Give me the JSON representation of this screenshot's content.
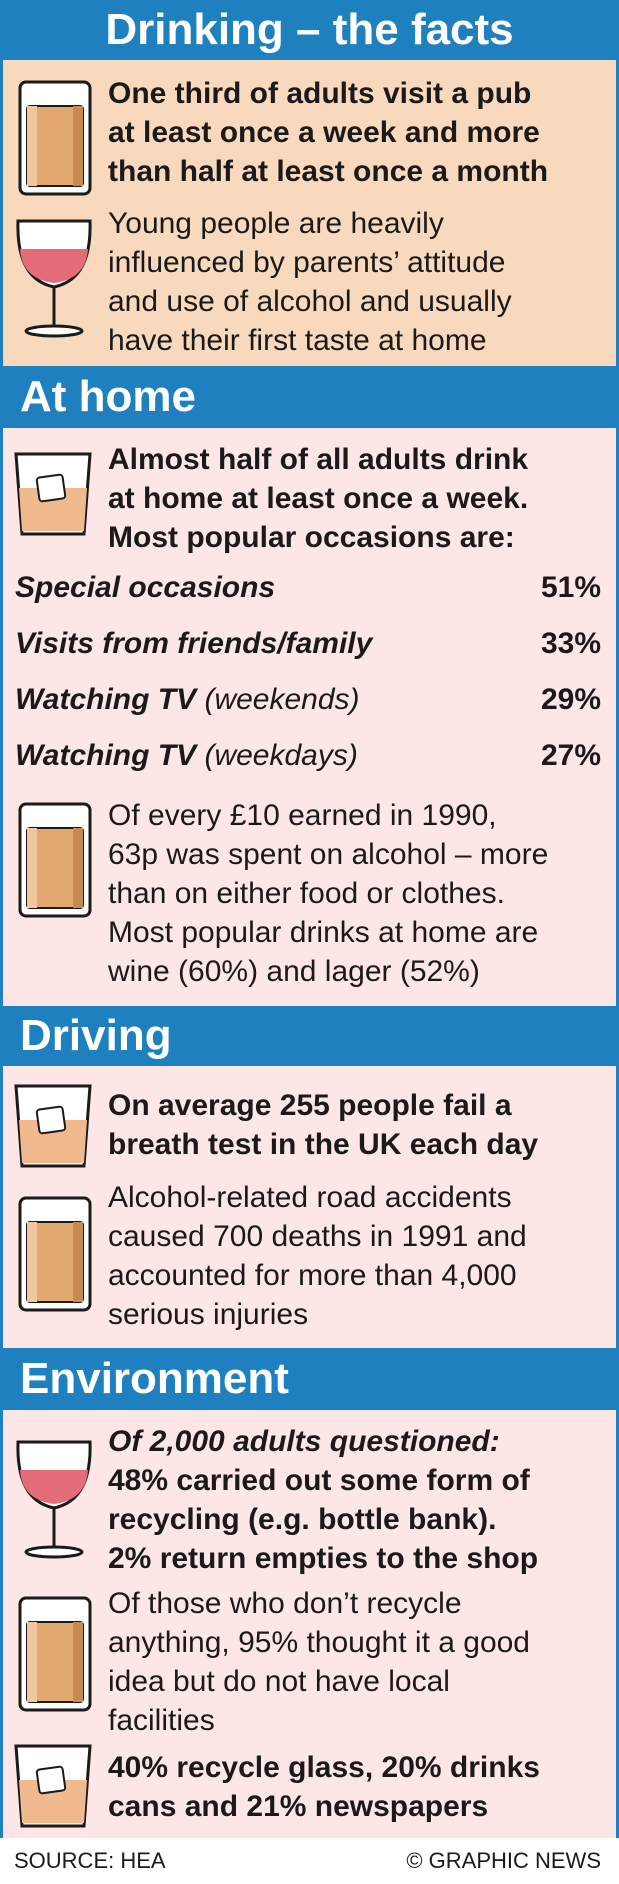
{
  "title": "Drinking – the facts",
  "intro": {
    "fact1": [
      "One third of adults visit a pub",
      "at least once a week and more",
      "than half at least once a month"
    ],
    "fact2": [
      "Young people are heavily",
      "influenced by parents’ attitude",
      "and use of alcohol and usually",
      "have their first taste at home"
    ]
  },
  "at_home": {
    "heading": "At home",
    "lead": [
      "Almost half of all adults drink",
      "at home at least once a week.",
      "Most popular occasions are:"
    ],
    "occasions": [
      {
        "label": "Special occasions",
        "note": "",
        "value": "51%"
      },
      {
        "label": "Visits from friends/family",
        "note": "",
        "value": "33%"
      },
      {
        "label": "Watching TV",
        "note": "(weekends)",
        "value": "29%"
      },
      {
        "label": "Watching TV",
        "note": "(weekdays)",
        "value": "27%"
      }
    ],
    "spending": [
      "Of every £10 earned in 1990,",
      "63p was spent on alcohol – more",
      "than on either food or clothes.",
      "Most popular drinks at home are",
      "wine (60%) and lager (52%)"
    ]
  },
  "driving": {
    "heading": "Driving",
    "fact1": [
      "On average 255 people fail a",
      "breath test in the UK each day"
    ],
    "fact2": [
      "Alcohol-related road accidents",
      "caused 700 deaths in 1991 and",
      "accounted for more than 4,000",
      "serious injuries"
    ]
  },
  "environment": {
    "heading": "Environment",
    "survey_intro": "Of 2,000 adults questioned:",
    "survey": [
      "48% carried out some form of",
      "recycling (e.g. bottle bank).",
      "2% return empties to the shop"
    ],
    "non_recyclers": [
      "Of those who don’t recycle",
      "anything, 95% thought it a good",
      "idea but do not have local",
      "facilities"
    ],
    "recycle_rates": [
      "40% recycle glass, 20% drinks",
      "cans and 21% newspapers"
    ]
  },
  "footer": {
    "source": "SOURCE: HEA",
    "credit": "© GRAPHIC NEWS"
  },
  "colors": {
    "header_blue": "#1f80c0",
    "peach_panel": "#f8d9bd",
    "pink_panel": "#fde7e6",
    "beer": "#e3a86d",
    "wine": "#e36c78"
  },
  "icons": [
    "pint-glass-icon",
    "wine-glass-icon",
    "tumbler-with-ice-icon"
  ]
}
